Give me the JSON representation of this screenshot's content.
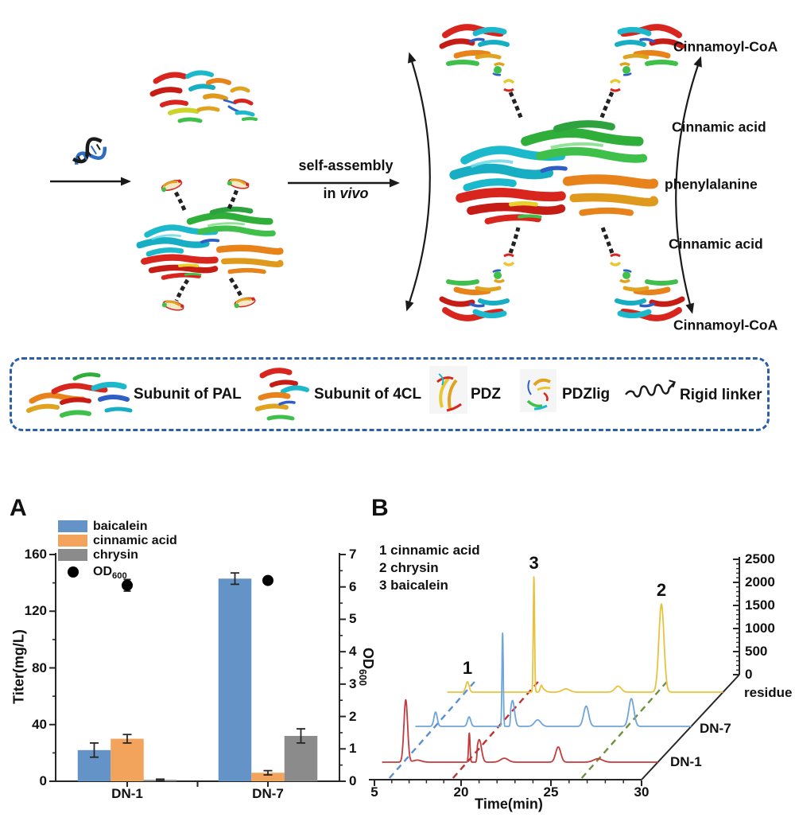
{
  "scheme": {
    "self_assembly_label": "self-assembly",
    "in_vivo_prefix": "in",
    "in_vivo_italic": "vivo",
    "product_labels": [
      "Cinnamoyl-CoA",
      "Cinnamic acid",
      "phenylalanine",
      "Cinnamic acid",
      "Cinnamoyl-CoA"
    ]
  },
  "legend_box": {
    "items": [
      {
        "icon": "pal-protein-icon",
        "label": "Subunit of PAL"
      },
      {
        "icon": "fourcl-protein-icon",
        "label": "Subunit of 4CL"
      },
      {
        "icon": "pdz-icon",
        "label": "PDZ"
      },
      {
        "icon": "pdzlig-icon",
        "label": "PDZlig"
      },
      {
        "icon": "rigid-linker-icon",
        "label": "Rigid linker"
      }
    ]
  },
  "panel_a": {
    "panel_label": "A",
    "y_left_title": "Titer(mg/L)",
    "y_right_title_main": "OD",
    "y_right_title_sub": "600",
    "legend_od_main": "OD",
    "legend_od_sub": "600"
  },
  "panel_b": {
    "panel_label": "B",
    "annotations": [
      "1 cinnamic acid",
      "2 chrysin",
      "3 baicalein"
    ],
    "xlabel": "Time(min)"
  },
  "chart_data": [
    {
      "type": "bar",
      "panel": "A",
      "categories": [
        "DN-1",
        "DN-7"
      ],
      "series": [
        {
          "name": "baicalein",
          "color": "#6494c7",
          "values": [
            22,
            143
          ],
          "errors": [
            5,
            4
          ]
        },
        {
          "name": "cinnamic acid",
          "color": "#f2a35c",
          "values": [
            30,
            6
          ],
          "errors": [
            3,
            1.5
          ]
        },
        {
          "name": "chrysin",
          "color": "#8b8b8b",
          "values": [
            1,
            32
          ],
          "errors": [
            0.5,
            5
          ]
        }
      ],
      "scatter_right_axis": {
        "name": "OD600",
        "color": "#000000",
        "values": [
          6.05,
          6.2
        ],
        "errors": [
          0.18,
          0.08
        ]
      },
      "ylabel_left": "Titer(mg/L)",
      "ylabel_right": "OD600",
      "yticks_left": [
        0,
        40,
        80,
        120,
        160
      ],
      "yticks_right": [
        0,
        1,
        2,
        3,
        4,
        5,
        6,
        7
      ],
      "ylim_left": [
        0,
        160
      ],
      "ylim_right": [
        0,
        7
      ],
      "grid": false
    },
    {
      "type": "line",
      "panel": "B",
      "xlabel": "Time(min)",
      "xticks": [
        5,
        20,
        25,
        30
      ],
      "intensity_ticks": [
        0,
        500,
        1000,
        1500,
        2000,
        2500
      ],
      "intensity_max": 2500,
      "t_range": [
        3.5,
        30
      ],
      "peak_key": [
        "1 cinnamic acid",
        "2 chrysin",
        "3 baicalein"
      ],
      "series": [
        {
          "name": "DN-1",
          "color": "#c23c3c",
          "offset_index": 0,
          "peaks": [
            {
              "t": 7.6,
              "i": 1350,
              "w": 0.45
            },
            {
              "t": 9.6,
              "i": 45,
              "w": 1.0
            },
            {
              "t": 18.6,
              "i": 630,
              "w": 0.18
            },
            {
              "t": 20.1,
              "i": 490,
              "w": 0.18
            },
            {
              "t": 21.5,
              "i": 85,
              "w": 0.3
            },
            {
              "t": 24.5,
              "i": 330,
              "w": 0.2
            },
            {
              "t": 26.7,
              "i": 75,
              "w": 0.35
            }
          ]
        },
        {
          "name": "DN-7",
          "color": "#70a5d8",
          "offset_index": 1,
          "peaks": [
            {
              "t": 7.0,
              "i": 310,
              "w": 0.4
            },
            {
              "t": 12.8,
              "i": 205,
              "w": 0.4
            },
            {
              "t": 18.6,
              "i": 2020,
              "w": 0.16
            },
            {
              "t": 20.1,
              "i": 560,
              "w": 0.16
            },
            {
              "t": 21.5,
              "i": 140,
              "w": 0.25
            },
            {
              "t": 24.2,
              "i": 440,
              "w": 0.2
            },
            {
              "t": 26.7,
              "i": 600,
              "w": 0.2
            }
          ]
        },
        {
          "name": "residue",
          "color": "#e9c23d",
          "offset_index": 2,
          "peaks": [
            {
              "t": 7.0,
              "i": 225,
              "w": 0.4
            },
            {
              "t": 18.5,
              "i": 2500,
              "w": 0.16
            },
            {
              "t": 19.8,
              "i": 150,
              "w": 0.3
            },
            {
              "t": 21.3,
              "i": 70,
              "w": 0.3
            },
            {
              "t": 24.2,
              "i": 130,
              "w": 0.25
            },
            {
              "t": 26.6,
              "i": 1910,
              "w": 0.2
            }
          ]
        }
      ],
      "peak_number_labels": [
        {
          "text": "1",
          "t": 7.0,
          "series": "residue"
        },
        {
          "text": "3",
          "t": 18.5,
          "series": "residue"
        },
        {
          "text": "2",
          "t": 26.6,
          "series": "residue"
        }
      ],
      "guide_lines": [
        {
          "color": "#5b8fd4",
          "t": 7.6
        },
        {
          "color": "#c03030",
          "t": 18.6
        },
        {
          "color": "#6d9140",
          "t": 26.7
        }
      ]
    }
  ]
}
